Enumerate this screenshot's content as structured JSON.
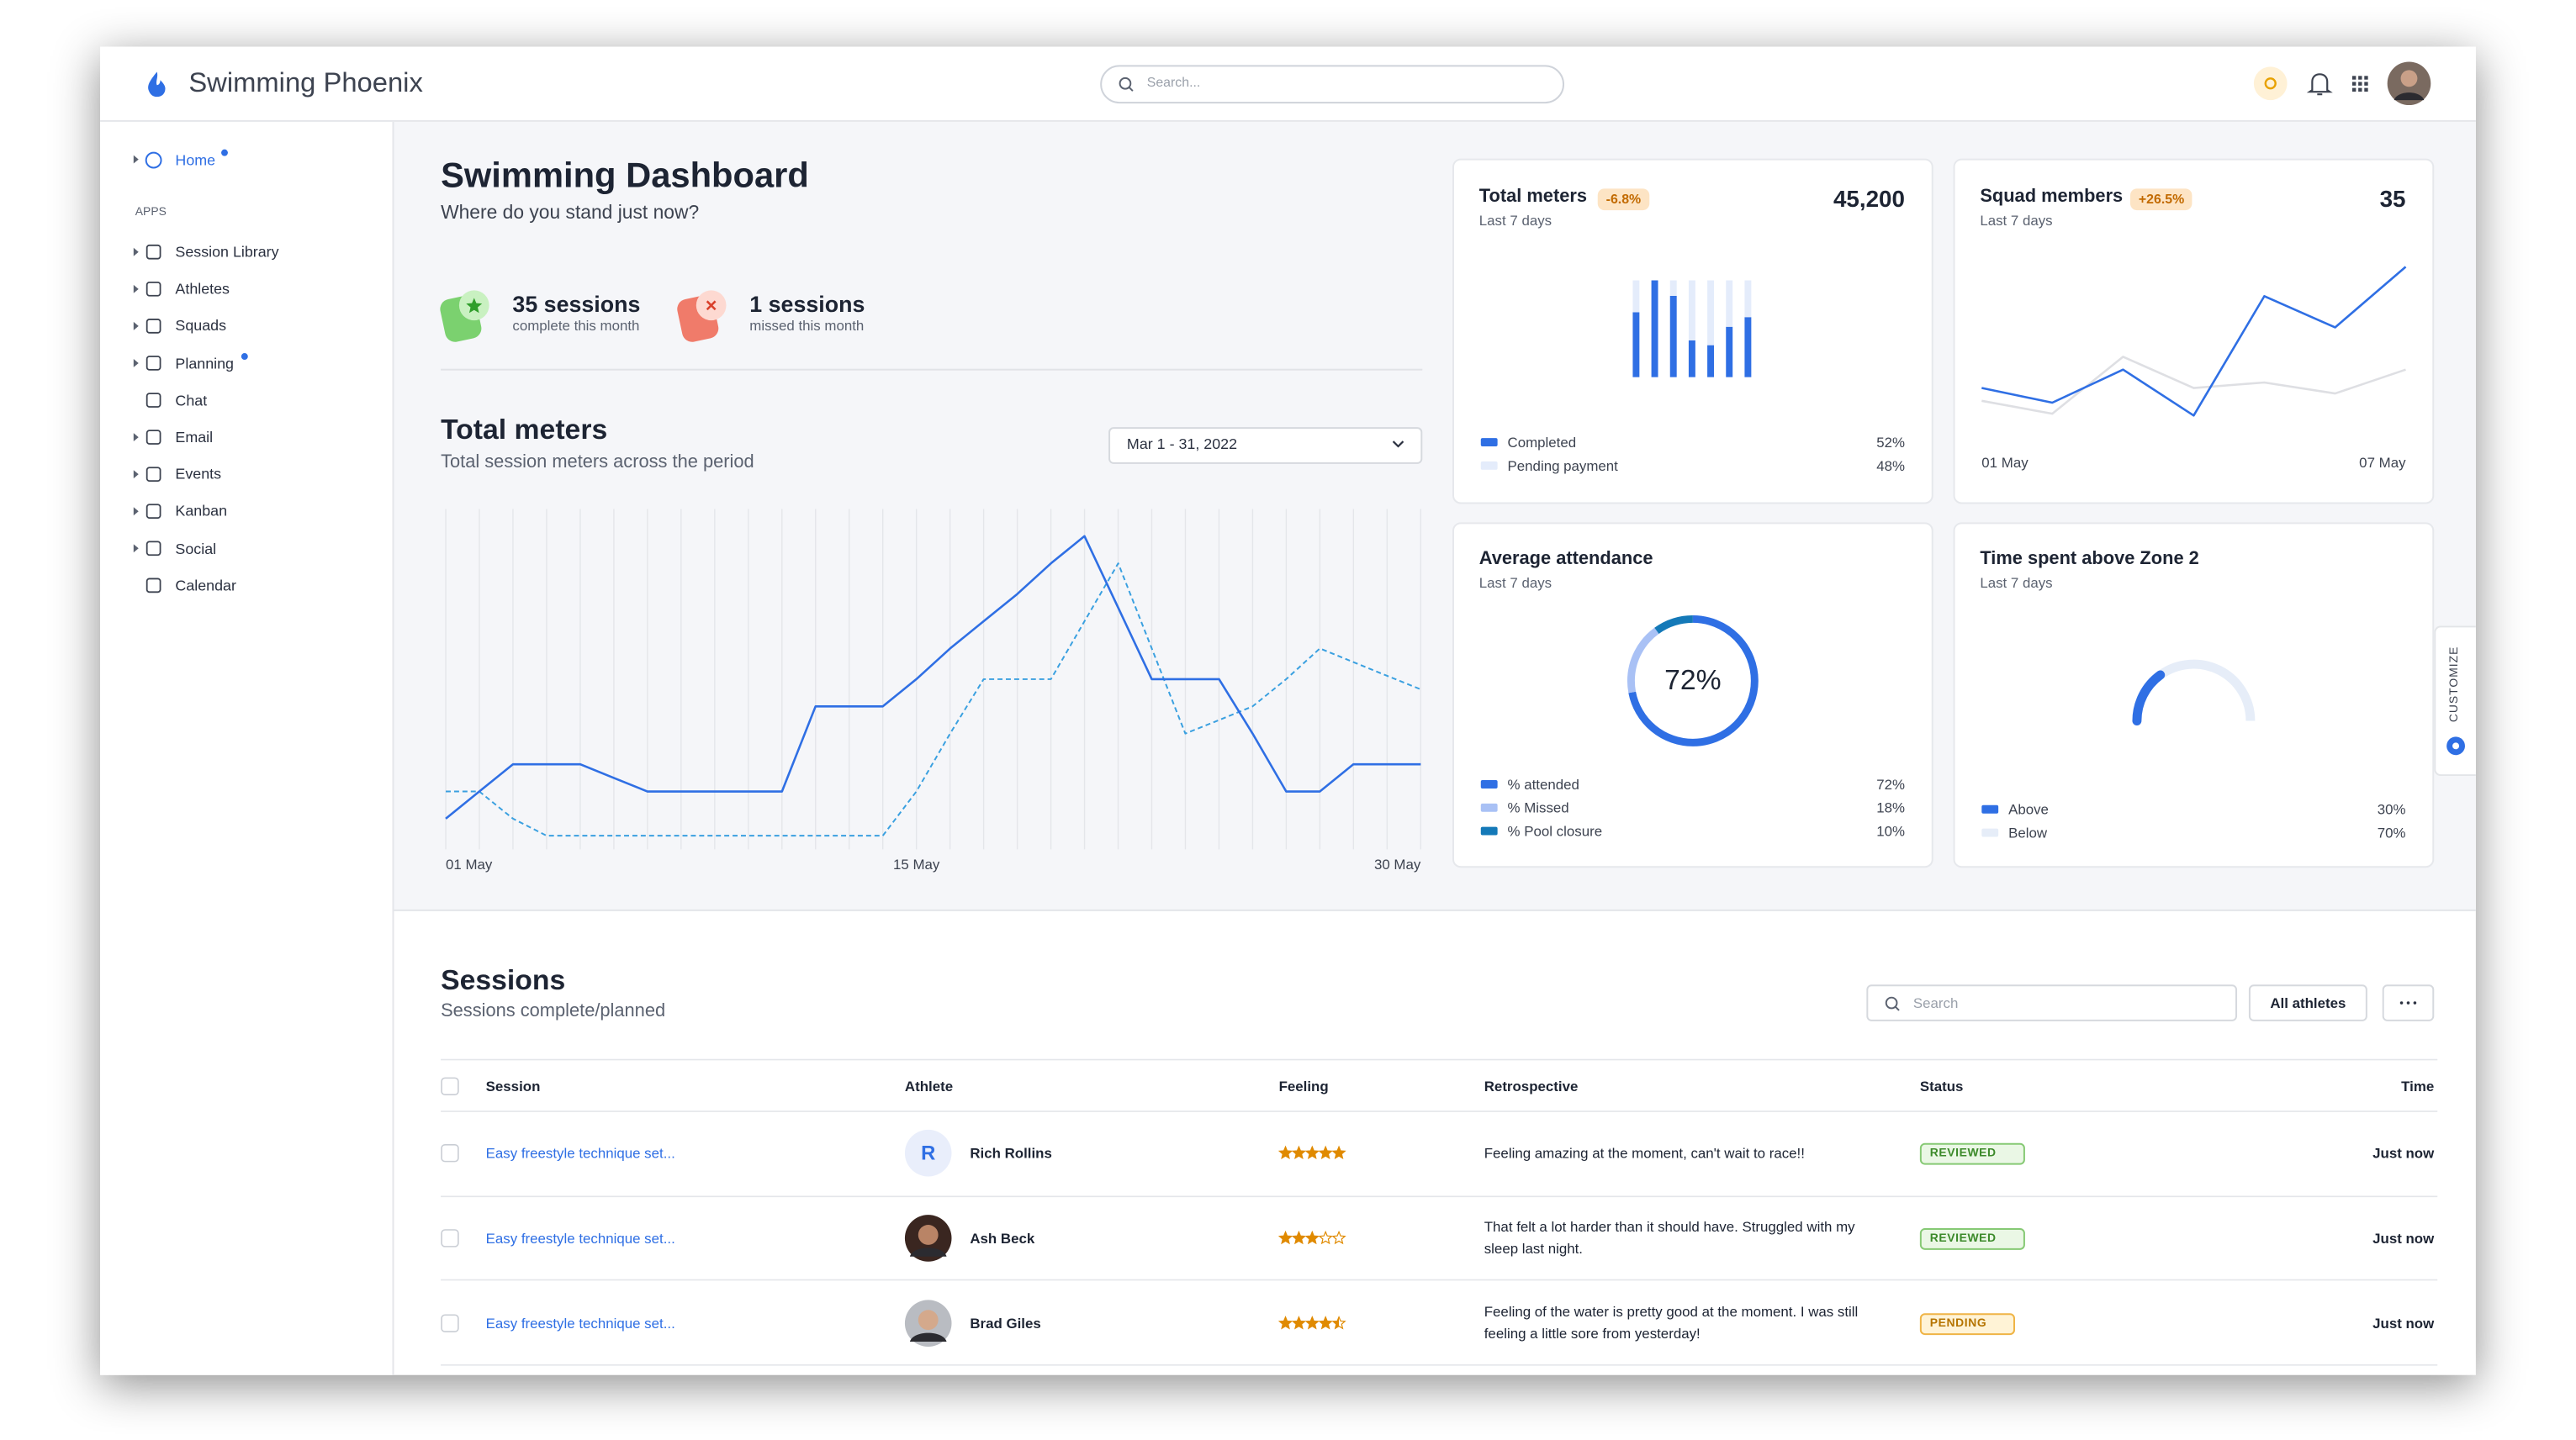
{
  "header": {
    "brand": "Swimming Phoenix",
    "search_placeholder": "Search..."
  },
  "sidebar": {
    "home": "Home",
    "section": "APPS",
    "items": [
      "Session Library",
      "Athletes",
      "Squads",
      "Planning",
      "Chat",
      "Email",
      "Events",
      "Kanban",
      "Social",
      "Calendar"
    ]
  },
  "side_tab": "CUSTOMIZE",
  "dashboard": {
    "title": "Swimming Dashboard",
    "subtitle": "Where do you stand just now?",
    "stats": [
      {
        "value": "35 sessions",
        "label": "complete this month"
      },
      {
        "value": "1 sessions",
        "label": "missed this month"
      }
    ],
    "date_range": "Mar 1 - 31, 2022"
  },
  "chart_data": [
    {
      "type": "line",
      "title": "Total meters",
      "subtitle": "Total session meters across the period",
      "categories": [
        "01 May",
        null,
        null,
        null,
        null,
        null,
        null,
        null,
        null,
        null,
        null,
        null,
        null,
        null,
        "15 May",
        null,
        null,
        null,
        null,
        null,
        null,
        null,
        null,
        null,
        null,
        null,
        null,
        null,
        null,
        "30 May"
      ],
      "ylim": [
        0,
        100
      ],
      "grid": "vertical",
      "series": [
        {
          "color": "#2f6fe4",
          "dash": false,
          "values": [
            9,
            17,
            25,
            25,
            25,
            21,
            17,
            17,
            17,
            17,
            17,
            42,
            42,
            42,
            50,
            59,
            67,
            75,
            84,
            92,
            71,
            50,
            50,
            50,
            34,
            17,
            17,
            25,
            25,
            25
          ]
        },
        {
          "color": "#3aa0e0",
          "dash": true,
          "values": [
            17,
            17,
            9,
            4,
            4,
            4,
            4,
            4,
            4,
            4,
            4,
            4,
            4,
            4,
            17,
            34,
            50,
            50,
            50,
            67,
            84,
            59,
            34,
            38,
            42,
            50,
            59,
            55,
            51,
            47
          ]
        }
      ]
    },
    {
      "type": "stacked-bar",
      "title": "Total meters",
      "subtitle": "Last 7 days",
      "change": -6.8,
      "change_label": "-6.8%",
      "total": 45200,
      "total_label": "45,200",
      "categories": [
        null,
        null,
        null,
        null,
        null,
        null,
        null
      ],
      "ylim": [
        0,
        100
      ],
      "series": [
        {
          "name": "Completed",
          "color": "#2f6fe4",
          "values": [
            67,
            100,
            84,
            38,
            33,
            52,
            62
          ],
          "share": 52,
          "share_label": "52%"
        },
        {
          "name": "Pending payment",
          "color": "#e4ecfb",
          "values": [
            33,
            0,
            16,
            62,
            67,
            48,
            38
          ],
          "share": 48,
          "share_label": "48%"
        }
      ]
    },
    {
      "type": "line",
      "title": "Squad members",
      "subtitle": "Last 7 days",
      "change": 26.5,
      "change_label": "+26.5%",
      "total": 35,
      "categories": [
        "01 May",
        null,
        null,
        null,
        null,
        null,
        "07 May"
      ],
      "ylim": [
        0,
        100
      ],
      "series": [
        {
          "color": "#2f6fe4",
          "dash": false,
          "values": [
            25,
            17,
            35,
            10,
            75,
            58,
            91
          ]
        },
        {
          "color": "#dedfe3",
          "dash": false,
          "values": [
            18,
            11,
            42,
            25,
            28,
            22,
            35
          ]
        }
      ]
    },
    {
      "type": "donut",
      "title": "Average attendance",
      "subtitle": "Last 7 days",
      "categories": [
        "% attended",
        "% Missed",
        "% Pool closure"
      ],
      "values": [
        72,
        18,
        10
      ],
      "value_labels": [
        "72%",
        "18%",
        "10%"
      ],
      "colors": [
        "#2f6fe4",
        "#a9c1f5",
        "#1479b8"
      ]
    },
    {
      "type": "gauge",
      "title": "Time spent above Zone 2",
      "subtitle": "Last 7 days",
      "categories": [
        "Above",
        "Below"
      ],
      "values": [
        30,
        70
      ],
      "value_labels": [
        "30%",
        "70%"
      ],
      "colors": [
        "#2f6fe4",
        "#e6edf8"
      ]
    }
  ],
  "sessions": {
    "title": "Sessions",
    "subtitle": "Sessions complete/planned",
    "search_placeholder": "Search",
    "filter": "All athletes",
    "columns": [
      "Session",
      "Athlete",
      "Feeling",
      "Retrospective",
      "Status",
      "Time"
    ],
    "rows": [
      {
        "session": "Easy freestyle technique set...",
        "athlete": "Rich Rollins",
        "initial": "R",
        "feeling": 5,
        "retrospective": "Feeling amazing at the moment, can't wait to race!!",
        "status": "REVIEWED",
        "time": "Just now"
      },
      {
        "session": "Easy freestyle technique set...",
        "athlete": "Ash Beck",
        "feeling": 3,
        "retrospective": "That felt a lot harder than it should have. Struggled with my sleep last night.",
        "status": "REVIEWED",
        "time": "Just now"
      },
      {
        "session": "Easy freestyle technique set...",
        "athlete": "Brad Giles",
        "feeling": 4.5,
        "retrospective": "Feeling of the water is pretty good at the moment. I was still feeling a little sore from yesterday!",
        "status": "PENDING",
        "time": "Just now"
      }
    ]
  }
}
